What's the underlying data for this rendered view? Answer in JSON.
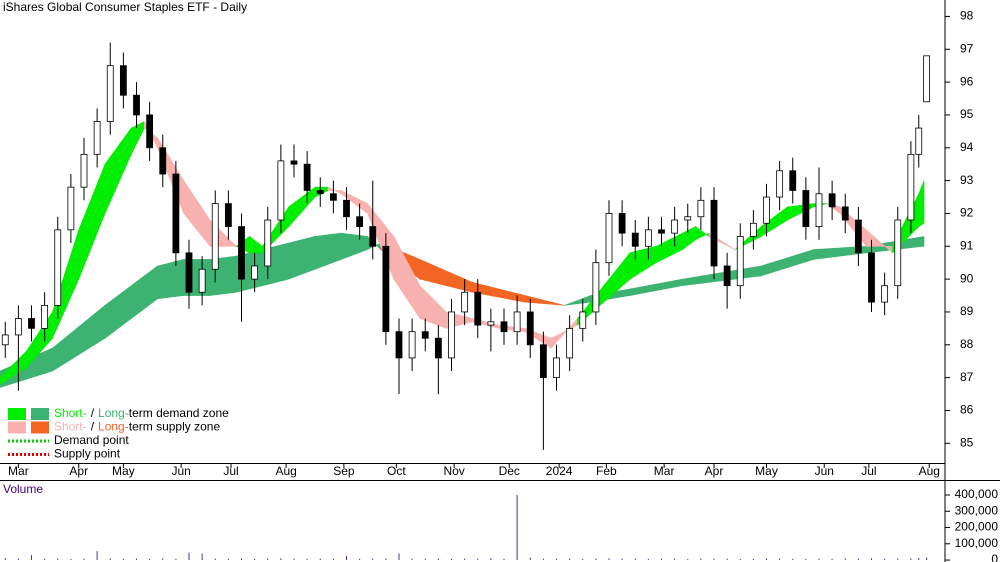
{
  "chart_data": {
    "type": "candlestick",
    "title": "iShares Global Consumer Staples ETF - Daily",
    "xlim": [
      0,
      360
    ],
    "xticks": [
      {
        "value": 7,
        "label": "Mar"
      },
      {
        "value": 30,
        "label": "Apr"
      },
      {
        "value": 47,
        "label": "May"
      },
      {
        "value": 69,
        "label": "Jun"
      },
      {
        "value": 88,
        "label": "Jul"
      },
      {
        "value": 109,
        "label": "Aug"
      },
      {
        "value": 131,
        "label": "Sep"
      },
      {
        "value": 151,
        "label": "Oct"
      },
      {
        "value": 173,
        "label": "Nov"
      },
      {
        "value": 194,
        "label": "Dec"
      },
      {
        "value": 213,
        "label": "2024"
      },
      {
        "value": 231,
        "label": "Feb"
      },
      {
        "value": 253,
        "label": "Mar"
      },
      {
        "value": 272,
        "label": "Apr"
      },
      {
        "value": 292,
        "label": "May"
      },
      {
        "value": 314,
        "label": "Jun"
      },
      {
        "value": 331,
        "label": "Jul"
      },
      {
        "value": 354,
        "label": "Aug"
      }
    ],
    "ylim": [
      84.4,
      98.5
    ],
    "yticks": [
      85,
      86,
      87,
      88,
      89,
      90,
      91,
      92,
      93,
      94,
      95,
      96,
      97,
      98
    ],
    "up_color": "#ffffff",
    "down_color": "#000000",
    "x": [
      2,
      7,
      12,
      17,
      22,
      27,
      32,
      37,
      42,
      47,
      52,
      57,
      62,
      67,
      72,
      77,
      82,
      87,
      92,
      97,
      102,
      107,
      112,
      117,
      122,
      127,
      132,
      137,
      142,
      147,
      152,
      157,
      162,
      167,
      172,
      177,
      182,
      187,
      192,
      197,
      202,
      207,
      212,
      217,
      222,
      227,
      232,
      237,
      242,
      247,
      252,
      257,
      262,
      267,
      272,
      277,
      282,
      287,
      292,
      297,
      302,
      307,
      312,
      317,
      322,
      327,
      332,
      337,
      342,
      347,
      350,
      353
    ],
    "open": [
      88.0,
      88.3,
      88.8,
      88.5,
      89.2,
      91.5,
      92.8,
      93.8,
      94.8,
      96.5,
      95.6,
      95.0,
      94.0,
      93.2,
      90.8,
      89.6,
      90.3,
      92.3,
      91.6,
      90.0,
      90.4,
      91.8,
      93.6,
      93.5,
      92.7,
      92.6,
      92.4,
      91.9,
      91.6,
      91.0,
      88.4,
      87.6,
      88.4,
      88.2,
      87.6,
      89.0,
      89.6,
      88.6,
      88.7,
      88.4,
      89.0,
      88.0,
      87.0,
      87.6,
      88.5,
      89.0,
      90.5,
      92.0,
      91.4,
      91.0,
      91.5,
      91.4,
      91.8,
      91.9,
      92.4,
      90.4,
      89.8,
      91.3,
      91.7,
      92.5,
      93.3,
      92.7,
      91.6,
      92.6,
      92.2,
      91.8,
      90.8,
      89.3,
      89.8,
      91.8,
      93.8,
      95.4
    ],
    "high": [
      88.7,
      89.2,
      89.2,
      89.6,
      91.9,
      93.2,
      94.3,
      95.2,
      97.2,
      96.9,
      96.0,
      95.4,
      94.4,
      93.6,
      91.2,
      90.7,
      92.7,
      92.7,
      92.0,
      90.8,
      92.2,
      94.1,
      94.1,
      93.9,
      93.1,
      93.0,
      92.8,
      92.3,
      93.0,
      91.4,
      88.8,
      88.8,
      88.8,
      88.6,
      89.4,
      90.0,
      90.0,
      89.1,
      89.1,
      89.5,
      89.4,
      88.4,
      88.0,
      88.9,
      89.4,
      90.9,
      92.4,
      92.4,
      91.8,
      91.9,
      91.9,
      92.2,
      92.3,
      92.8,
      92.8,
      90.8,
      91.7,
      92.1,
      92.9,
      93.6,
      93.7,
      93.1,
      93.4,
      93.0,
      92.6,
      92.2,
      91.2,
      90.2,
      92.2,
      94.2,
      95.0,
      96.8
    ],
    "low": [
      87.6,
      86.6,
      88.1,
      88.1,
      88.8,
      91.1,
      92.4,
      93.4,
      94.4,
      95.2,
      94.6,
      93.6,
      92.8,
      90.4,
      89.1,
      89.2,
      89.9,
      91.2,
      88.7,
      89.6,
      90.0,
      91.4,
      93.1,
      92.3,
      92.2,
      92.0,
      91.5,
      91.2,
      90.6,
      88.0,
      86.5,
      87.2,
      87.8,
      86.5,
      87.2,
      88.6,
      88.2,
      87.8,
      88.0,
      88.0,
      87.6,
      84.8,
      86.6,
      87.2,
      88.1,
      88.6,
      90.1,
      91.0,
      90.6,
      90.6,
      91.0,
      91.0,
      91.4,
      91.5,
      90.0,
      89.1,
      89.4,
      90.9,
      91.3,
      92.1,
      92.3,
      91.2,
      91.2,
      91.8,
      91.4,
      90.4,
      89.0,
      88.9,
      89.4,
      91.4,
      93.4,
      95.4
    ],
    "close": [
      88.3,
      88.8,
      88.5,
      89.2,
      91.5,
      92.8,
      93.8,
      94.8,
      96.5,
      95.6,
      95.0,
      94.0,
      93.2,
      90.8,
      89.6,
      90.3,
      92.3,
      91.6,
      90.0,
      90.4,
      91.8,
      93.6,
      93.5,
      92.7,
      92.6,
      92.4,
      91.9,
      91.6,
      91.0,
      88.4,
      87.6,
      88.4,
      88.2,
      87.6,
      89.0,
      89.6,
      88.6,
      88.7,
      88.4,
      89.0,
      88.0,
      87.0,
      87.6,
      88.5,
      89.0,
      90.5,
      92.0,
      91.4,
      91.0,
      91.5,
      91.4,
      91.8,
      91.9,
      92.4,
      90.4,
      89.8,
      91.3,
      91.7,
      92.5,
      93.3,
      92.7,
      91.6,
      92.6,
      92.2,
      91.8,
      90.8,
      89.3,
      89.8,
      91.8,
      93.8,
      94.6,
      96.8
    ],
    "short_zone": {
      "demand_color": "#00ee00",
      "supply_color": "#f7b2b0",
      "x": [
        0,
        10,
        20,
        30,
        40,
        50,
        55,
        60,
        70,
        80,
        90,
        95,
        100,
        110,
        120,
        125,
        130,
        140,
        150,
        160,
        170,
        180,
        190,
        200,
        210,
        220,
        230,
        240,
        250,
        260,
        265,
        270,
        280,
        290,
        300,
        310,
        315,
        320,
        330,
        340,
        350,
        352
      ],
      "fast": [
        87.0,
        87.8,
        89.0,
        91.5,
        93.5,
        94.6,
        94.8,
        94.0,
        92.0,
        91.0,
        91.0,
        91.3,
        91.0,
        92.2,
        92.8,
        92.8,
        92.6,
        92.0,
        90.0,
        88.8,
        88.5,
        88.7,
        88.5,
        88.4,
        87.9,
        88.8,
        89.8,
        90.8,
        91.0,
        91.4,
        91.6,
        91.3,
        90.9,
        91.6,
        92.2,
        92.3,
        92.3,
        92.0,
        91.0,
        91.0,
        92.6,
        93.0
      ],
      "slow": [
        86.8,
        87.3,
        88.2,
        90.0,
        92.0,
        93.8,
        94.6,
        94.3,
        93.0,
        91.8,
        91.0,
        90.8,
        90.8,
        91.6,
        92.5,
        92.7,
        92.7,
        92.3,
        91.3,
        89.8,
        89.0,
        88.8,
        88.6,
        88.5,
        88.2,
        88.6,
        89.3,
        90.0,
        90.5,
        90.9,
        91.2,
        91.4,
        90.9,
        91.3,
        91.8,
        92.2,
        92.3,
        92.2,
        91.5,
        90.8,
        91.6,
        91.7
      ]
    },
    "long_zone": {
      "demand_color": "#3cb371",
      "supply_color": "#f26522",
      "x": [
        0,
        20,
        40,
        60,
        70,
        80,
        90,
        100,
        110,
        120,
        130,
        140,
        145,
        160,
        180,
        200,
        215,
        225,
        240,
        260,
        290,
        310,
        330,
        352
      ],
      "fast": [
        87.2,
        87.9,
        89.2,
        90.4,
        90.6,
        90.6,
        90.7,
        90.9,
        91.1,
        91.3,
        91.4,
        91.3,
        90.9,
        90.0,
        89.6,
        89.3,
        89.2,
        89.5,
        89.7,
        90.0,
        90.4,
        90.9,
        91.0,
        91.3
      ],
      "slow": [
        86.7,
        87.2,
        88.2,
        89.4,
        89.5,
        89.5,
        89.6,
        89.8,
        90.0,
        90.3,
        90.6,
        90.9,
        91.1,
        90.6,
        89.9,
        89.5,
        89.2,
        89.3,
        89.5,
        89.8,
        90.1,
        90.6,
        90.8,
        91.0
      ]
    },
    "legend": [
      {
        "parts": [
          "Short-",
          "/",
          "Long-",
          "term demand zone"
        ]
      },
      {
        "parts": [
          "Short-",
          "/",
          "Long-",
          "term supply zone"
        ]
      },
      {
        "text": "Demand point",
        "color": "#00cc00"
      },
      {
        "text": "Supply point",
        "color": "#e00000"
      }
    ],
    "volume": {
      "label": "Volume",
      "color": "#3a3aa0",
      "ylim": [
        -12000,
        486000
      ],
      "yticks": [
        {
          "value": 0,
          "label": "0"
        },
        {
          "value": 100000,
          "label": "100,000"
        },
        {
          "value": 200000,
          "label": "200,000"
        },
        {
          "value": 300000,
          "label": "300,000"
        },
        {
          "value": 400000,
          "label": "400,000"
        }
      ],
      "values": [
        12000,
        9000,
        30000,
        8000,
        10000,
        7000,
        9000,
        55000,
        11000,
        8000,
        9000,
        7000,
        10000,
        8000,
        45000,
        40000,
        9000,
        8000,
        10000,
        7000,
        9000,
        11000,
        8000,
        7000,
        9000,
        8000,
        25000,
        8000,
        9000,
        10000,
        40000,
        9000,
        8000,
        10000,
        7000,
        9000,
        8000,
        11000,
        9000,
        400000,
        15000,
        9000,
        8000,
        10000,
        7000,
        9000,
        11000,
        8000,
        9000,
        7000,
        8000,
        9000,
        7000,
        10000,
        8000,
        9000,
        7000,
        8000,
        10000,
        9000,
        8000,
        7000,
        9000,
        8000,
        10000,
        9000,
        11000,
        8000,
        9000,
        10000,
        12000,
        15000
      ]
    }
  }
}
